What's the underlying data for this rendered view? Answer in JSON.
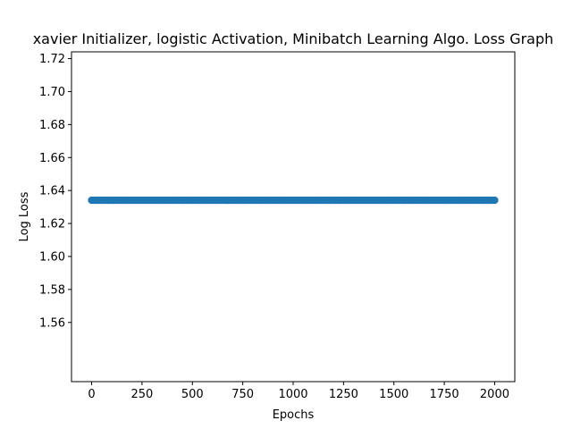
{
  "chart_data": {
    "type": "scatter",
    "title": "xavier Initializer, logistic Activation, Minibatch Learning Algo. Loss Graph",
    "xlabel": "Epochs",
    "ylabel": "Log Loss",
    "xlim": [
      -100,
      2100
    ],
    "ylim": [
      1.5241,
      1.7241
    ],
    "xticks": [
      0,
      250,
      500,
      750,
      1000,
      1250,
      1500,
      1750,
      2000
    ],
    "xtick_labels": [
      "0",
      "250",
      "500",
      "750",
      "1000",
      "1250",
      "1500",
      "1750",
      "2000"
    ],
    "yticks": [
      1.56,
      1.58,
      1.6,
      1.62,
      1.64,
      1.66,
      1.68,
      1.7,
      1.72
    ],
    "ytick_labels": [
      "1.56",
      "1.58",
      "1.60",
      "1.62",
      "1.64",
      "1.66",
      "1.68",
      "1.70",
      "1.72"
    ],
    "grid": false,
    "legend": "none",
    "series": [
      {
        "x_start": 0,
        "x_end": 2000,
        "x_step": 10,
        "y": 1.6341,
        "color": "#1f77b4"
      }
    ]
  }
}
